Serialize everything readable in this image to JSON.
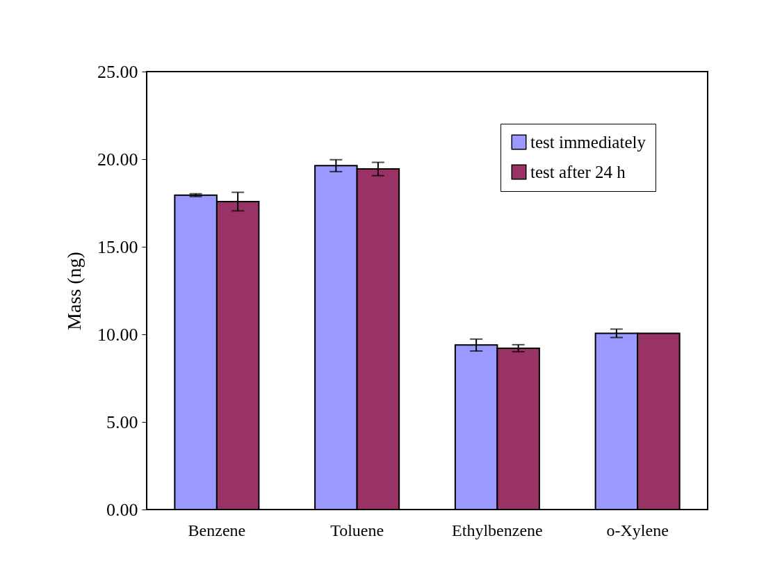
{
  "chart_data": {
    "type": "bar",
    "ylabel": "Mass (ng)",
    "categories": [
      "Benzene",
      "Toluene",
      "Ethylbenzene",
      "o-Xylene"
    ],
    "series": [
      {
        "name": "test immediately",
        "color": "#9999ff",
        "values": [
          17.95,
          19.63,
          9.39,
          10.06
        ],
        "errors": [
          0.08,
          0.34,
          0.34,
          0.24
        ]
      },
      {
        "name": "test after 24 h",
        "color": "#993366",
        "values": [
          17.58,
          19.44,
          9.21,
          10.06
        ],
        "errors": [
          0.53,
          0.38,
          0.2,
          null
        ]
      }
    ],
    "ylim": [
      0,
      25
    ],
    "yticks": [
      {
        "value": 0,
        "label": "0.00"
      },
      {
        "value": 5,
        "label": "5.00"
      },
      {
        "value": 10,
        "label": "10.00"
      },
      {
        "value": 15,
        "label": "15.00"
      },
      {
        "value": 20,
        "label": "20.00"
      },
      {
        "value": 25,
        "label": "25.00"
      }
    ],
    "legend": "top right",
    "grid": false
  }
}
